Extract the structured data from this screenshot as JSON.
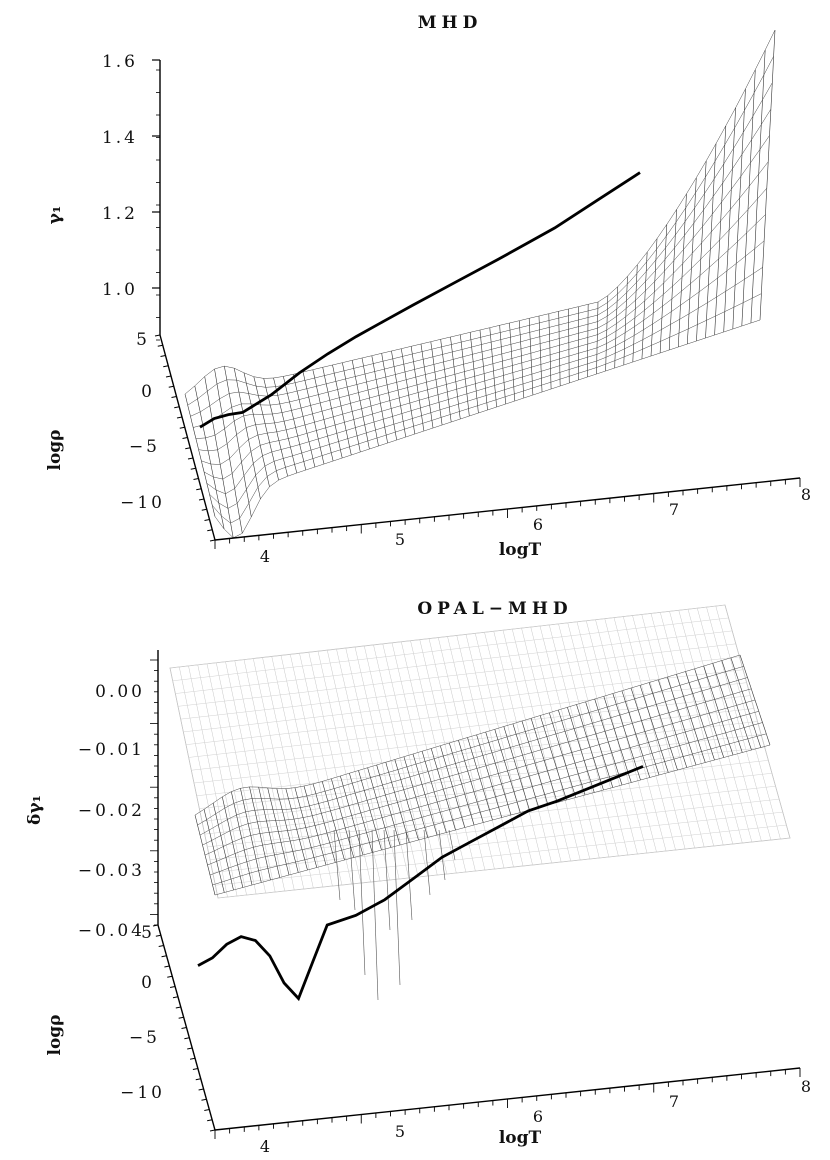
{
  "chart_data": [
    {
      "type": "surface",
      "title": "MHD",
      "zlabel": "γ₁",
      "ylabel": "logρ",
      "xlabel": "logT",
      "zlim": [
        1.0,
        1.6
      ],
      "z_ticks": [
        "1.0",
        "1.2",
        "1.4",
        "1.6"
      ],
      "y_ticks": [
        "5",
        "0",
        "−5",
        "−10"
      ],
      "x_ticks": [
        "4",
        "5",
        "6",
        "7",
        "8"
      ],
      "curve": {
        "logT": [
          3.7,
          3.8,
          3.9,
          4.0,
          4.2,
          4.4,
          4.6,
          4.8,
          5.0,
          5.2,
          5.5,
          5.8,
          6.0,
          6.2,
          6.5,
          6.8
        ],
        "gamma1": [
          1.03,
          1.05,
          1.04,
          1.02,
          1.06,
          1.13,
          1.18,
          1.22,
          1.25,
          1.28,
          1.32,
          1.36,
          1.39,
          1.42,
          1.49,
          1.56
        ]
      }
    },
    {
      "type": "surface",
      "title": "OPAL−MHD",
      "zlabel": "δγ₁",
      "ylabel": "logρ",
      "xlabel": "logT",
      "zlim": [
        -0.04,
        0.005
      ],
      "z_ticks": [
        "0.00",
        "−0.01",
        "−0.02",
        "−0.03",
        "−0.04"
      ],
      "y_ticks": [
        "5",
        "0",
        "−5",
        "−10"
      ],
      "x_ticks": [
        "4",
        "5",
        "6",
        "7",
        "8"
      ],
      "curve": {
        "logT": [
          3.7,
          3.8,
          3.9,
          4.0,
          4.1,
          4.2,
          4.3,
          4.4,
          4.5,
          4.6,
          4.8,
          5.0,
          5.2,
          5.4,
          5.6,
          5.8,
          6.0,
          6.2,
          6.5,
          6.8
        ],
        "delta_gamma1": [
          -0.022,
          -0.021,
          -0.019,
          -0.018,
          -0.019,
          -0.022,
          -0.027,
          -0.03,
          -0.024,
          -0.018,
          -0.017,
          -0.015,
          -0.012,
          -0.009,
          -0.007,
          -0.005,
          -0.003,
          -0.002,
          0.0,
          0.002
        ]
      }
    }
  ]
}
